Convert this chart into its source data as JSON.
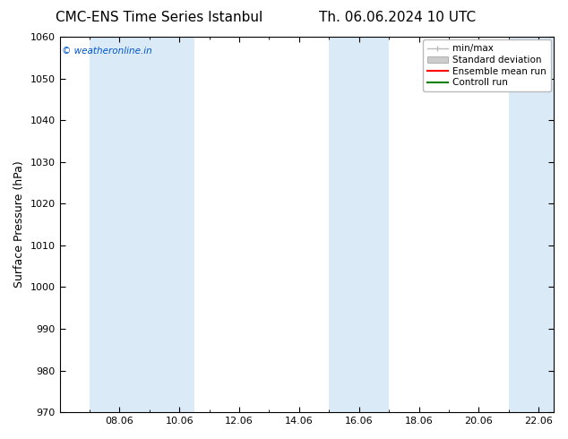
{
  "title_left": "CMC-ENS Time Series Istanbul",
  "title_right": "Th. 06.06.2024 10 UTC",
  "ylabel": "Surface Pressure (hPa)",
  "ylim": [
    970,
    1060
  ],
  "yticks": [
    970,
    980,
    990,
    1000,
    1010,
    1020,
    1030,
    1040,
    1050,
    1060
  ],
  "xtick_positions": [
    8,
    10,
    12,
    14,
    16,
    18,
    20,
    22
  ],
  "xtick_labels": [
    "08.06",
    "10.06",
    "12.06",
    "14.06",
    "16.06",
    "18.06",
    "20.06",
    "22.06"
  ],
  "xlim": [
    6.0,
    22.5
  ],
  "shaded_bands": [
    {
      "x_start": 7.0,
      "x_end": 10.5
    },
    {
      "x_start": 15.0,
      "x_end": 17.0
    },
    {
      "x_start": 21.0,
      "x_end": 22.5
    }
  ],
  "band_color": "#daeaf7",
  "watermark": "© weatheronline.in",
  "watermark_color": "#0055cc",
  "legend_items": [
    {
      "label": "min/max",
      "color": "#bbbbbb",
      "type": "errorbar"
    },
    {
      "label": "Standard deviation",
      "color": "#cccccc",
      "type": "box"
    },
    {
      "label": "Ensemble mean run",
      "color": "#ff0000",
      "type": "line"
    },
    {
      "label": "Controll run",
      "color": "#008000",
      "type": "line"
    }
  ],
  "bg_color": "#ffffff",
  "title_fontsize": 11,
  "label_fontsize": 9,
  "tick_fontsize": 8,
  "legend_fontsize": 7.5
}
